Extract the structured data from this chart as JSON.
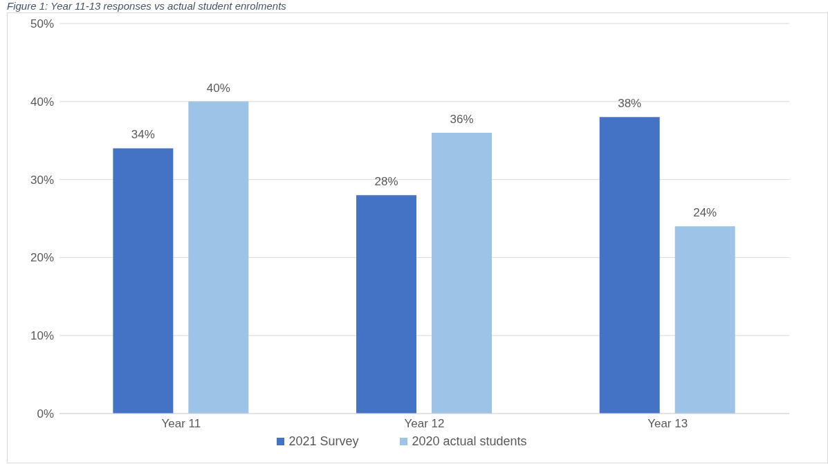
{
  "chart_data": {
    "type": "bar",
    "title": "Figure 1: Year 11-13 responses vs actual student enrolments",
    "categories": [
      "Year 11",
      "Year 12",
      "Year 13"
    ],
    "series": [
      {
        "name": "2021 Survey",
        "color": "#4472c4",
        "values": [
          34,
          28,
          38
        ],
        "value_labels": [
          "34%",
          "28%",
          "38%"
        ]
      },
      {
        "name": "2020 actual students",
        "color": "#9dc3e6",
        "values": [
          40,
          36,
          24
        ],
        "value_labels": [
          "40%",
          "36%",
          "24%"
        ]
      }
    ],
    "ylim": [
      0,
      50
    ],
    "yticks": [
      {
        "value": 0,
        "label": "0%"
      },
      {
        "value": 10,
        "label": "10%"
      },
      {
        "value": 20,
        "label": "20%"
      },
      {
        "value": 30,
        "label": "30%"
      },
      {
        "value": 40,
        "label": "40%"
      },
      {
        "value": 50,
        "label": "50%"
      }
    ],
    "grid": "y",
    "legend": "bottom"
  }
}
